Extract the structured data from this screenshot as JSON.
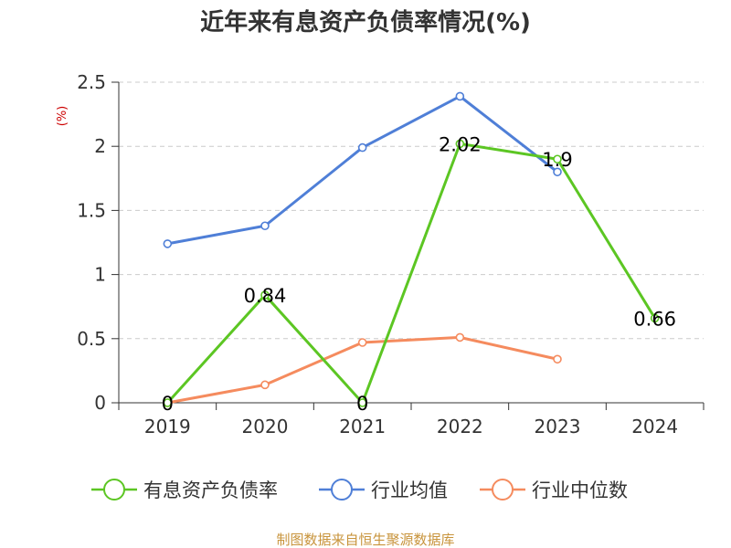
{
  "title": "近年来有息资产负债率情况(%)",
  "source": "制图数据来自恒生聚源数据库",
  "chart_data": {
    "type": "line",
    "title": "近年来有息资产负债率情况(%)",
    "ylabel": "(%)",
    "xlabel": "",
    "categories": [
      "2019",
      "2020",
      "2021",
      "2022",
      "2023",
      "2024"
    ],
    "ylim": [
      0,
      2.5
    ],
    "yticks": [
      "0",
      "0.5",
      "1",
      "1.5",
      "2",
      "2.5"
    ],
    "grid": true,
    "legend_position": "bottom",
    "series": [
      {
        "name": "有息资产负债率",
        "color": "#5cc623",
        "values": [
          0,
          0.84,
          0,
          2.02,
          1.9,
          0.66
        ],
        "labels": [
          "0",
          "0.84",
          "0",
          "2.02",
          "1.9",
          "0.66"
        ]
      },
      {
        "name": "行业均值",
        "color": "#4f7fd7",
        "values": [
          1.24,
          1.38,
          1.99,
          2.39,
          1.8,
          null
        ]
      },
      {
        "name": "行业中位数",
        "color": "#f58b5e",
        "values": [
          0.0,
          0.14,
          0.47,
          0.51,
          0.34,
          null
        ]
      }
    ]
  }
}
